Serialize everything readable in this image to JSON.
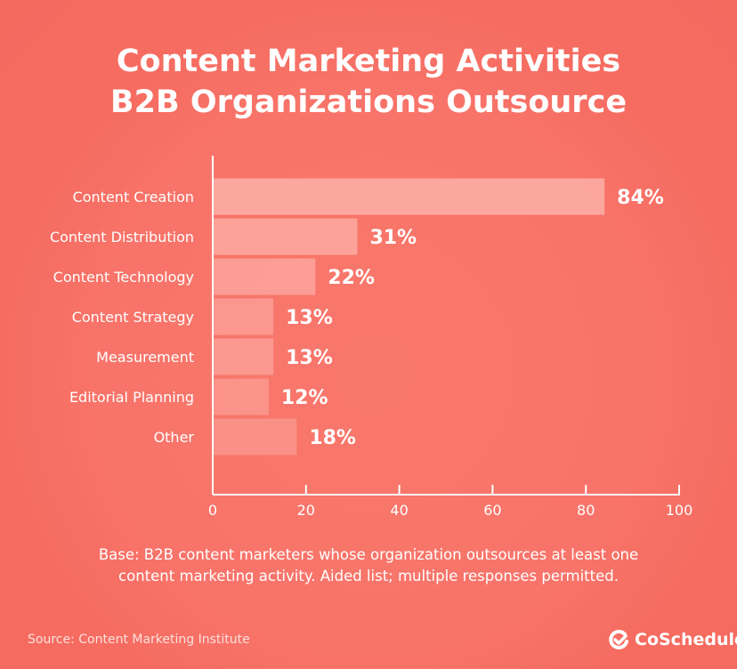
{
  "title_lines": [
    "Content Marketing Activities",
    "B2B Organizations Outsource"
  ],
  "note_lines": [
    "Base: B2B content marketers whose organization outsources at least one",
    "content marketing activity. Aided list; multiple responses permitted."
  ],
  "source": "Source: Content Marketing Institute",
  "brand": "CoSchedule",
  "colors": {
    "background": "#f76e63",
    "bar": "#ffc6bf",
    "text": "#ffffff"
  },
  "chart_data": {
    "type": "bar",
    "orientation": "horizontal",
    "title": "Content Marketing Activities B2B Organizations Outsource",
    "categories": [
      "Content Creation",
      "Content Distribution",
      "Content Technology",
      "Content Strategy",
      "Measurement",
      "Editorial Planning",
      "Other"
    ],
    "values": [
      84,
      31,
      22,
      13,
      13,
      12,
      18
    ],
    "data_labels": [
      "84%",
      "31%",
      "22%",
      "13%",
      "13%",
      "12%",
      "18%"
    ],
    "xlim": [
      0,
      100
    ],
    "xticks": [
      0,
      20,
      40,
      60,
      80,
      100
    ],
    "grid": false,
    "xlabel": "",
    "ylabel": ""
  }
}
